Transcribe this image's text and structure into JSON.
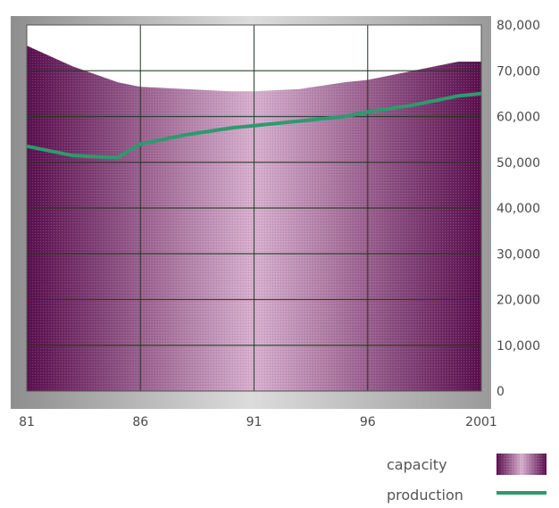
{
  "chart_data": {
    "type": "area",
    "x": [
      1981,
      1983,
      1985,
      1986,
      1988,
      1990,
      1991,
      1993,
      1995,
      1996,
      1998,
      2000,
      2001
    ],
    "x_ticks": [
      1981,
      1986,
      1991,
      1996,
      2001
    ],
    "x_tick_labels": [
      "81",
      "86",
      "91",
      "96",
      "2001"
    ],
    "y_ticks": [
      0,
      10000,
      20000,
      30000,
      40000,
      50000,
      60000,
      70000,
      80000
    ],
    "y_tick_labels": [
      "0",
      "10,000",
      "20,000",
      "30,000",
      "40,000",
      "50,000",
      "60,000",
      "70,000",
      "80,000"
    ],
    "ylim": [
      0,
      80000
    ],
    "xlim": [
      1981,
      2001
    ],
    "grid": true,
    "legend_position": "bottom-right",
    "series": [
      {
        "name": "capacity",
        "type": "area",
        "values": [
          75500,
          71000,
          67500,
          66500,
          66000,
          65500,
          65500,
          66000,
          67500,
          68000,
          70000,
          72000,
          72000
        ]
      },
      {
        "name": "production",
        "type": "line",
        "values": [
          53500,
          51500,
          51000,
          54000,
          56000,
          57500,
          58000,
          59000,
          60000,
          61000,
          62500,
          64500,
          65000
        ]
      }
    ],
    "colors": {
      "capacity_dark": "#5a0f4e",
      "capacity_light": "#d3a8c9",
      "production": "#2e9a6e",
      "plot_border": "#9a9a9a",
      "grid": "#1f3a1f"
    }
  }
}
